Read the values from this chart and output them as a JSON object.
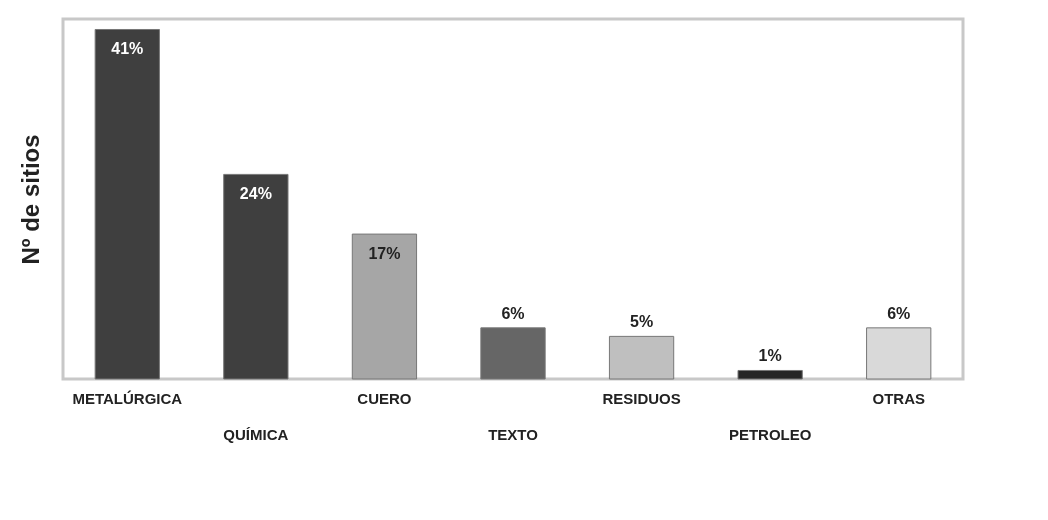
{
  "chart_data": {
    "type": "bar",
    "ylabel": "Nº de sitios",
    "categories": [
      "METALÚRGICA",
      "QUÍMICA",
      "CUERO",
      "TEXTO",
      "RESIDUOS",
      "PETROLEO",
      "OTRAS"
    ],
    "values": [
      41,
      24,
      17,
      6,
      5,
      1,
      6
    ],
    "colors": [
      "#3f3f3f",
      "#3f3f3f",
      "#a6a6a6",
      "#666666",
      "#bfbfbf",
      "#262626",
      "#d9d9d9"
    ],
    "value_labels": [
      "41%",
      "24%",
      "17%",
      "6%",
      "5%",
      "1%",
      "6%"
    ]
  }
}
